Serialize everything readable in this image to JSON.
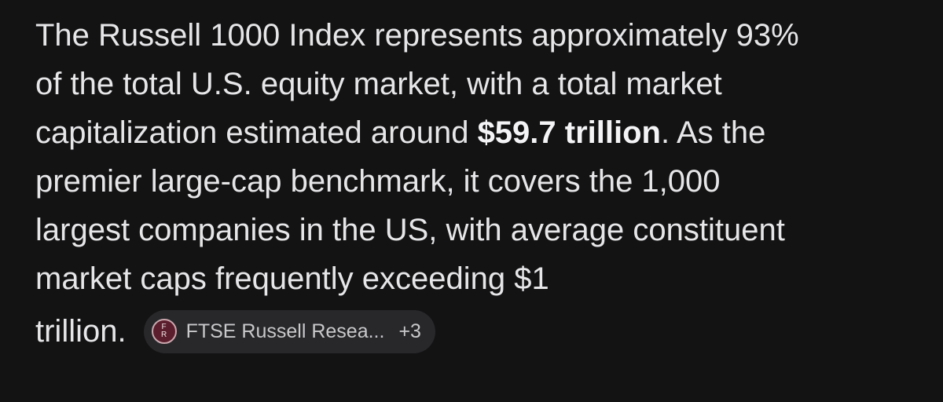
{
  "paragraph": {
    "lines": [
      "The Russell 1000 Index represents approximately 93%",
      "of the total U.S. equity market, with a total market",
      {
        "before": "capitalization estimated around ",
        "bold": "$59.7 trillion",
        "after": ". As the"
      },
      "premier large-cap benchmark, it covers the 1,000",
      "largest companies in the US, with average constituent",
      "market caps frequently exceeding $1",
      "trillion."
    ]
  },
  "citation": {
    "icon_top": "F",
    "icon_bottom": "R",
    "source": "FTSE Russell Resea...",
    "more": "+3"
  }
}
